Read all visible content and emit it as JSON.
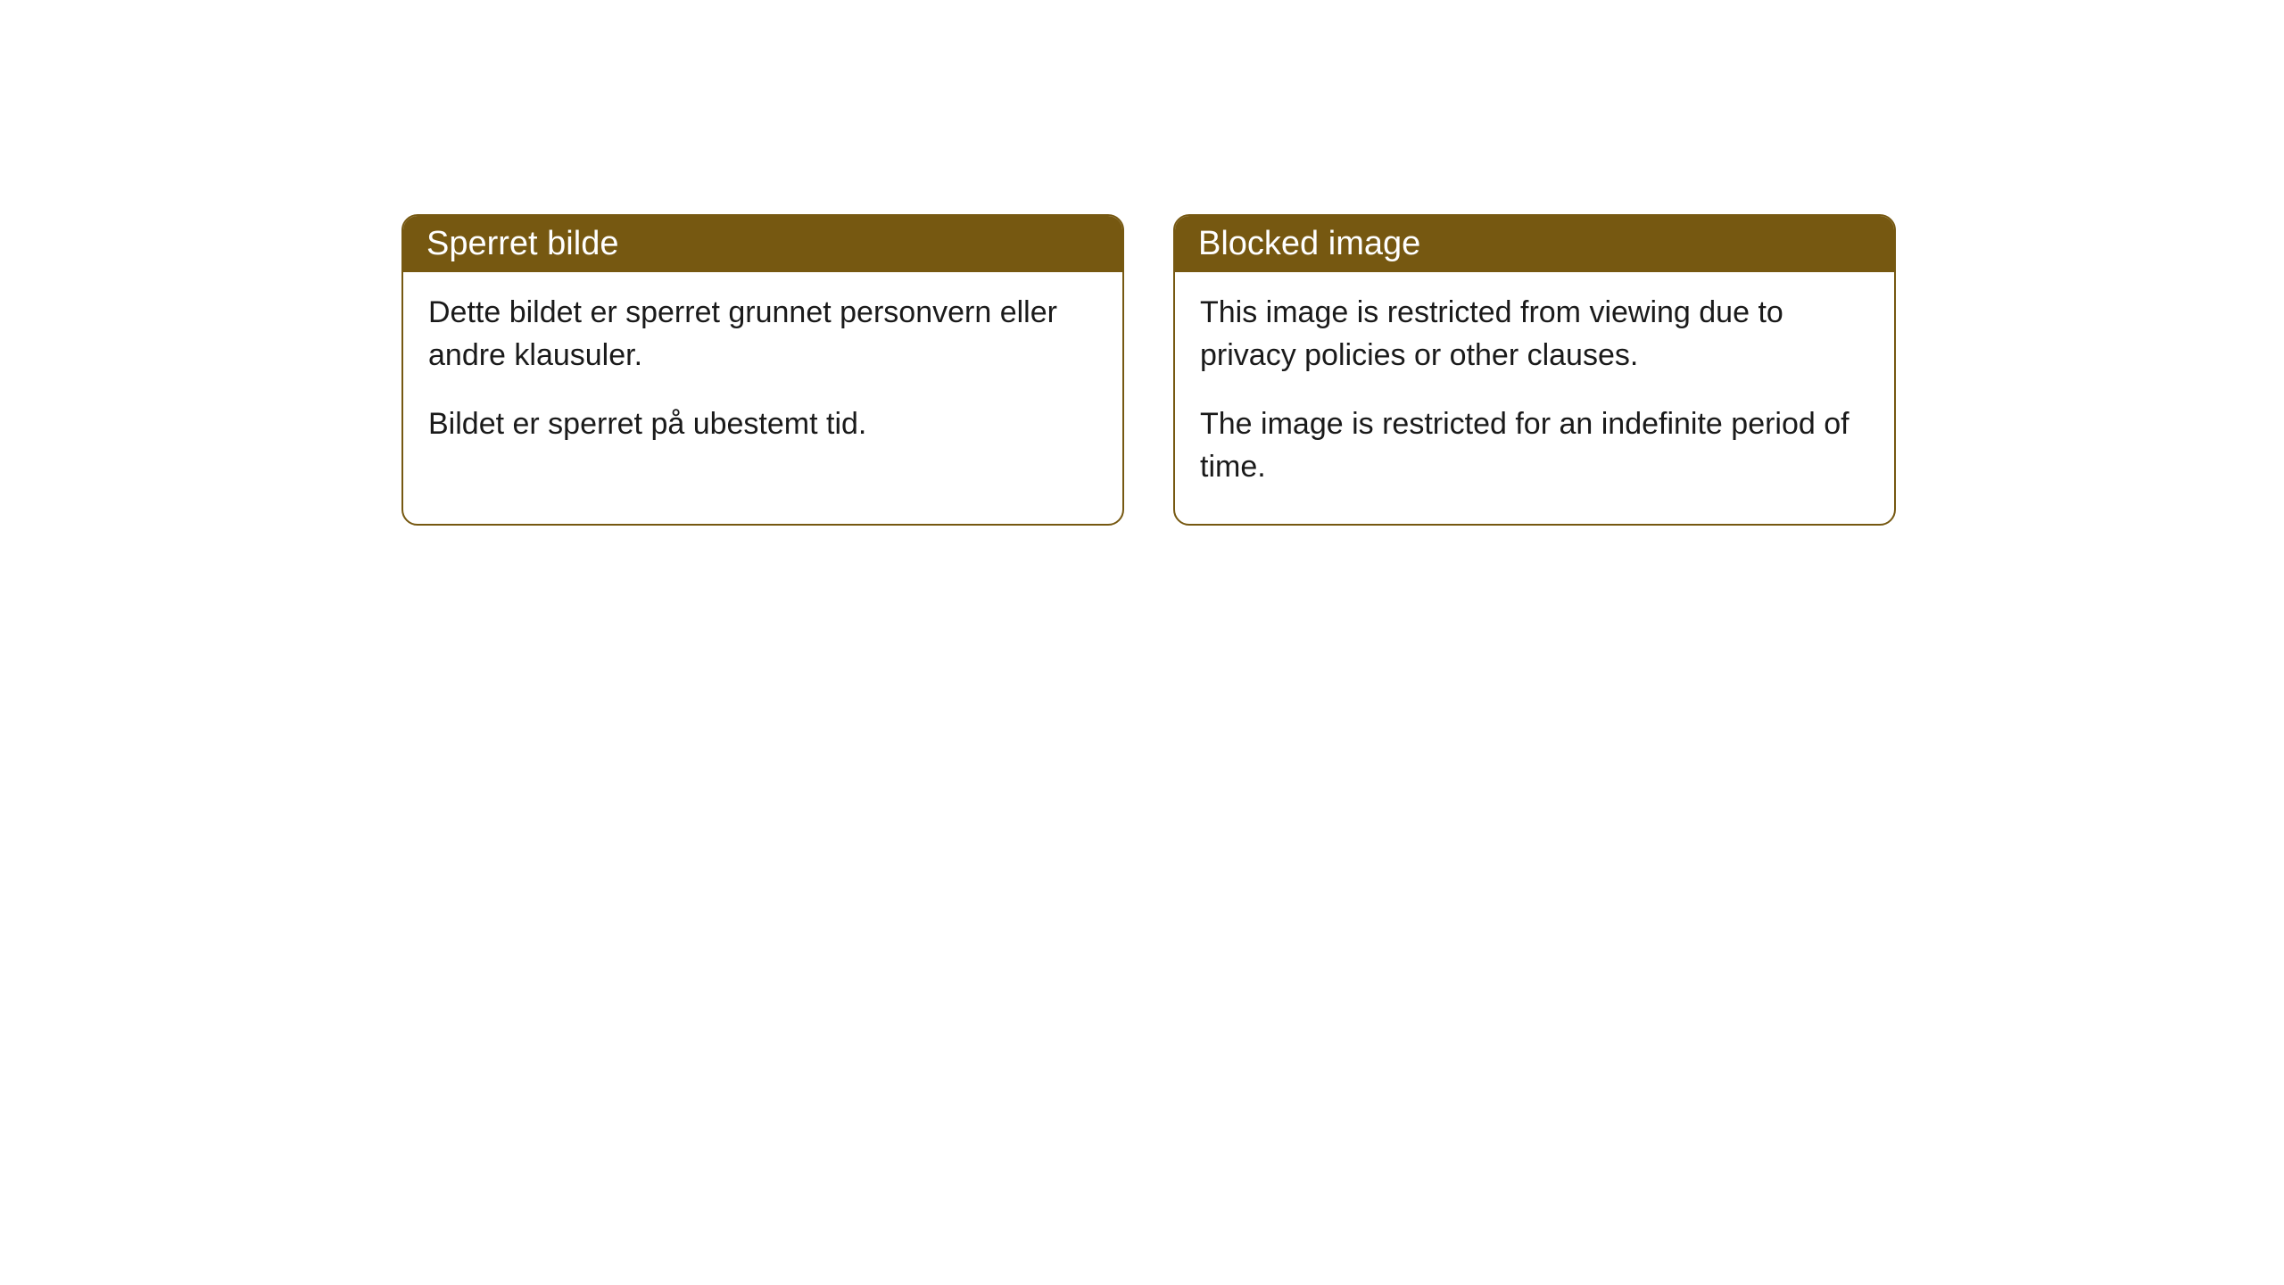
{
  "cards": [
    {
      "title": "Sperret bilde",
      "paragraph1": "Dette bildet er sperret grunnet personvern eller andre klausuler.",
      "paragraph2": "Bildet er sperret på ubestemt tid."
    },
    {
      "title": "Blocked image",
      "paragraph1": "This image is restricted from viewing due to privacy policies or other clauses.",
      "paragraph2": "The image is restricted for an indefinite period of time."
    }
  ],
  "styling": {
    "header_background": "#765811",
    "header_text_color": "#ffffff",
    "border_color": "#765811",
    "body_background": "#ffffff",
    "body_text_color": "#1a1a1a",
    "border_radius": 18,
    "header_fontsize": 38,
    "body_fontsize": 34
  }
}
